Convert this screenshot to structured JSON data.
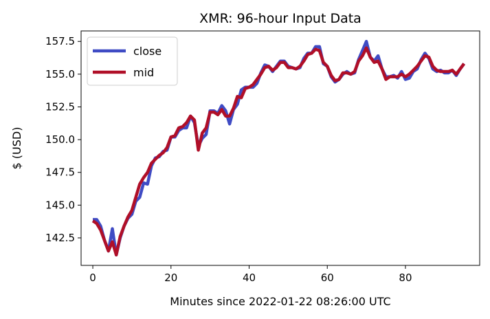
{
  "chart_data": {
    "type": "line",
    "title": "XMR: 96-hour Input Data",
    "xlabel": "Minutes since 2022-01-22 08:26:00 UTC",
    "ylabel": "$ (USD)",
    "xlim": [
      -3,
      99
    ],
    "ylim": [
      140.4,
      158.3
    ],
    "xticks": [
      0,
      20,
      40,
      60,
      80
    ],
    "yticks": [
      142.5,
      145.0,
      147.5,
      150.0,
      152.5,
      155.0,
      157.5
    ],
    "xtick_labels": [
      "0",
      "20",
      "40",
      "60",
      "80"
    ],
    "ytick_labels": [
      "142.5",
      "145.0",
      "147.5",
      "150.0",
      "152.5",
      "155.0",
      "157.5"
    ],
    "grid": false,
    "legend": {
      "placement": "top-left"
    },
    "series": [
      {
        "name": "close",
        "color": "#3f4bc4",
        "x": [
          0,
          1,
          2,
          3,
          4,
          5,
          6,
          7,
          8,
          9,
          10,
          11,
          12,
          13,
          14,
          15,
          16,
          17,
          18,
          19,
          20,
          21,
          22,
          23,
          24,
          25,
          26,
          27,
          28,
          29,
          30,
          31,
          32,
          33,
          34,
          35,
          36,
          37,
          38,
          39,
          40,
          41,
          42,
          43,
          44,
          45,
          46,
          47,
          48,
          49,
          50,
          51,
          52,
          53,
          54,
          55,
          56,
          57,
          58,
          59,
          60,
          61,
          62,
          63,
          64,
          65,
          66,
          67,
          68,
          69,
          70,
          71,
          72,
          73,
          74,
          75,
          76,
          77,
          78,
          79,
          80,
          81,
          82,
          83,
          84,
          85,
          86,
          87,
          88,
          89,
          90,
          91,
          92,
          93,
          94,
          95
        ],
        "values": [
          143.9,
          143.9,
          143.4,
          142.3,
          141.5,
          143.2,
          141.2,
          142.5,
          143.4,
          144.0,
          144.3,
          145.3,
          145.6,
          146.7,
          146.6,
          148.0,
          148.6,
          148.7,
          149.1,
          149.2,
          150.2,
          150.2,
          150.7,
          150.9,
          150.9,
          151.8,
          151.3,
          149.5,
          150.1,
          150.4,
          152.2,
          152.2,
          152.0,
          152.6,
          152.2,
          151.2,
          152.3,
          152.7,
          153.8,
          154.0,
          154.0,
          154.0,
          154.3,
          155.1,
          155.7,
          155.6,
          155.2,
          155.6,
          156.0,
          156.0,
          155.6,
          155.5,
          155.4,
          155.5,
          156.2,
          156.6,
          156.6,
          157.1,
          157.1,
          155.8,
          155.6,
          154.8,
          154.4,
          154.6,
          155.0,
          155.2,
          155.0,
          155.1,
          156.1,
          156.8,
          157.5,
          156.3,
          156.0,
          156.4,
          155.4,
          154.8,
          154.8,
          154.9,
          154.7,
          155.2,
          154.6,
          154.7,
          155.2,
          155.4,
          156.1,
          156.6,
          156.2,
          155.4,
          155.2,
          155.3,
          155.1,
          155.1,
          155.3,
          154.9,
          155.4,
          155.8
        ]
      },
      {
        "name": "mid",
        "color": "#b00f28",
        "x": [
          0,
          1,
          2,
          3,
          4,
          5,
          6,
          7,
          8,
          9,
          10,
          11,
          12,
          13,
          14,
          15,
          16,
          17,
          18,
          19,
          20,
          21,
          22,
          23,
          24,
          25,
          26,
          27,
          28,
          29,
          30,
          31,
          32,
          33,
          34,
          35,
          36,
          37,
          38,
          39,
          40,
          41,
          42,
          43,
          44,
          45,
          46,
          47,
          48,
          49,
          50,
          51,
          52,
          53,
          54,
          55,
          56,
          57,
          58,
          59,
          60,
          61,
          62,
          63,
          64,
          65,
          66,
          67,
          68,
          69,
          70,
          71,
          72,
          73,
          74,
          75,
          76,
          77,
          78,
          79,
          80,
          81,
          82,
          83,
          84,
          85,
          86,
          87,
          88,
          89,
          90,
          91,
          92,
          93,
          94,
          95
        ],
        "values": [
          143.8,
          143.6,
          143.1,
          142.3,
          141.5,
          142.2,
          141.2,
          142.6,
          143.4,
          144.1,
          144.6,
          145.6,
          146.6,
          147.1,
          147.5,
          148.2,
          148.5,
          148.8,
          149.0,
          149.4,
          150.2,
          150.3,
          150.9,
          151.0,
          151.3,
          151.8,
          151.5,
          149.2,
          150.5,
          150.9,
          152.1,
          152.1,
          151.9,
          152.3,
          151.8,
          151.8,
          152.4,
          153.3,
          153.2,
          153.9,
          154.0,
          154.2,
          154.6,
          155.0,
          155.5,
          155.6,
          155.3,
          155.5,
          155.9,
          155.9,
          155.5,
          155.5,
          155.4,
          155.6,
          156.0,
          156.5,
          156.6,
          156.9,
          156.8,
          155.9,
          155.6,
          154.9,
          154.5,
          154.6,
          155.1,
          155.1,
          155.0,
          155.2,
          156.0,
          156.4,
          157.0,
          156.3,
          155.9,
          156.0,
          155.4,
          154.6,
          154.8,
          154.8,
          154.8,
          155.0,
          154.8,
          155.0,
          155.3,
          155.6,
          156.0,
          156.4,
          156.3,
          155.6,
          155.3,
          155.2,
          155.2,
          155.2,
          155.3,
          155.0,
          155.4,
          155.8
        ]
      }
    ]
  }
}
